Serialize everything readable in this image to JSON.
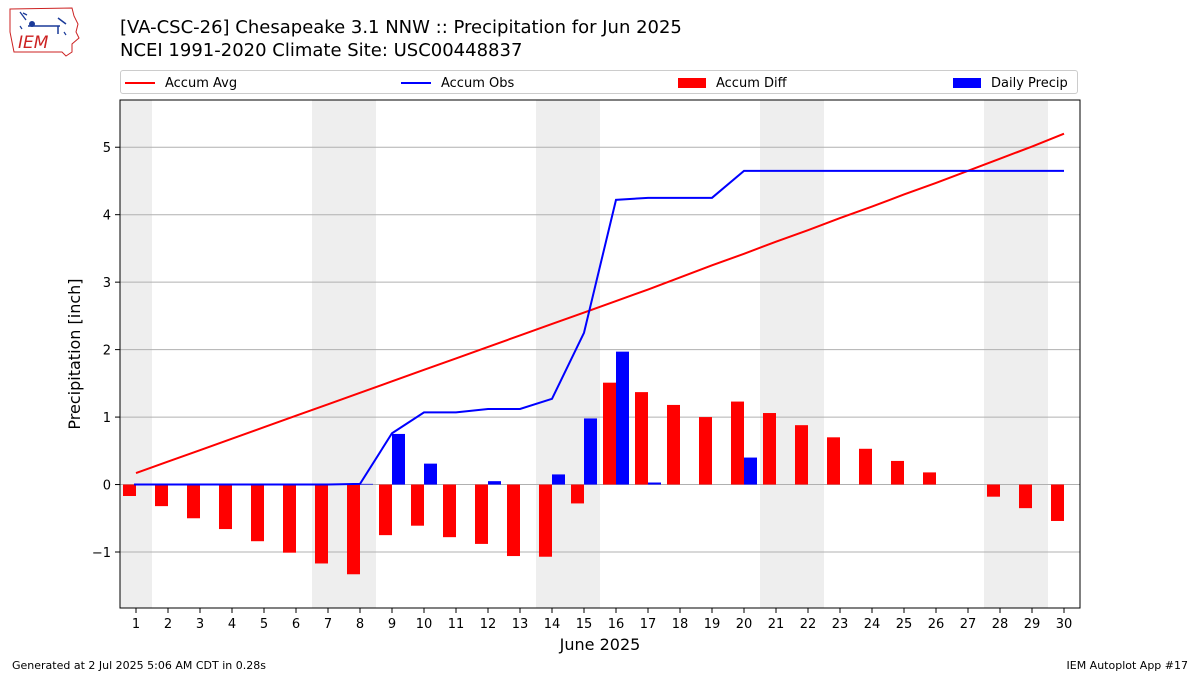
{
  "header": {
    "title_line1": "[VA-CSC-26] Chesapeake 3.1 NNW :: Precipitation for Jun 2025",
    "title_line2": "NCEI 1991-2020 Climate Site: USC00448837",
    "logo_text": "IEM"
  },
  "legend": {
    "accum_avg": "Accum Avg",
    "accum_obs": "Accum Obs",
    "accum_diff": "Accum Diff",
    "daily_precip": "Daily Precip"
  },
  "footer": {
    "generated": "Generated at 2 Jul 2025 5:06 AM CDT in 0.28s",
    "app": "IEM Autoplot App #17"
  },
  "colors": {
    "accum_avg": "#ff0000",
    "accum_obs": "#0000ff",
    "accum_diff": "#ff0000",
    "daily_precip": "#0000ff",
    "weekend_shade": "#eeeeee",
    "grid": "#b0b0b0"
  },
  "chart_data": {
    "type": "bar",
    "xlabel": "June 2025",
    "ylabel": "Precipitation [inch]",
    "x": [
      1,
      2,
      3,
      4,
      5,
      6,
      7,
      8,
      9,
      10,
      11,
      12,
      13,
      14,
      15,
      16,
      17,
      18,
      19,
      20,
      21,
      22,
      23,
      24,
      25,
      26,
      27,
      28,
      29,
      30
    ],
    "xticks": [
      "1",
      "2",
      "3",
      "4",
      "5",
      "6",
      "7",
      "8",
      "9",
      "10",
      "11",
      "12",
      "13",
      "14",
      "15",
      "16",
      "17",
      "18",
      "19",
      "20",
      "21",
      "22",
      "23",
      "24",
      "25",
      "26",
      "27",
      "28",
      "29",
      "30"
    ],
    "ylim": [
      -1.83,
      5.7
    ],
    "yticks": [
      -1,
      0,
      1,
      2,
      3,
      4,
      5
    ],
    "ytick_labels": [
      "−1",
      "0",
      "1",
      "2",
      "3",
      "4",
      "5"
    ],
    "grid": "y",
    "legend_position": "top",
    "weekend_shading_days": [
      1,
      7,
      8,
      14,
      15,
      21,
      22,
      28,
      29
    ],
    "series": [
      {
        "name": "Accum Avg",
        "type": "line",
        "values": [
          0.17,
          0.34,
          0.51,
          0.68,
          0.85,
          1.02,
          1.19,
          1.36,
          1.53,
          1.7,
          1.87,
          2.04,
          2.21,
          2.38,
          2.55,
          2.72,
          2.89,
          3.07,
          3.25,
          3.42,
          3.6,
          3.77,
          3.95,
          4.12,
          4.3,
          4.47,
          4.65,
          4.83,
          5.01,
          5.2
        ]
      },
      {
        "name": "Accum Obs",
        "type": "line",
        "values": [
          0.0,
          0.0,
          0.0,
          0.0,
          0.0,
          0.0,
          0.0,
          0.01,
          0.76,
          1.07,
          1.07,
          1.12,
          1.12,
          1.27,
          2.25,
          4.22,
          4.25,
          4.25,
          4.25,
          4.65,
          4.65,
          4.65,
          4.65,
          4.65,
          4.65,
          4.65,
          4.65,
          4.65,
          4.65,
          4.65
        ]
      },
      {
        "name": "Accum Diff",
        "type": "bar",
        "values": [
          -0.17,
          -0.32,
          -0.5,
          -0.66,
          -0.84,
          -1.01,
          -1.17,
          -1.33,
          -0.75,
          -0.61,
          -0.78,
          -0.88,
          -1.06,
          -1.07,
          -0.28,
          1.51,
          1.37,
          1.18,
          1.0,
          1.23,
          1.06,
          0.88,
          0.7,
          0.53,
          0.35,
          0.18,
          0.0,
          -0.18,
          -0.35,
          -0.54
        ]
      },
      {
        "name": "Daily Precip",
        "type": "bar",
        "values": [
          0.0,
          0.0,
          0.0,
          0.0,
          0.0,
          0.0,
          0.0,
          0.01,
          0.75,
          0.31,
          0.0,
          0.05,
          0.0,
          0.15,
          0.98,
          1.97,
          0.03,
          0.0,
          0.0,
          0.4,
          0.0,
          0.0,
          0.0,
          0.0,
          0.0,
          0.0,
          0.0,
          0.0,
          0.0,
          0.0
        ]
      }
    ]
  }
}
